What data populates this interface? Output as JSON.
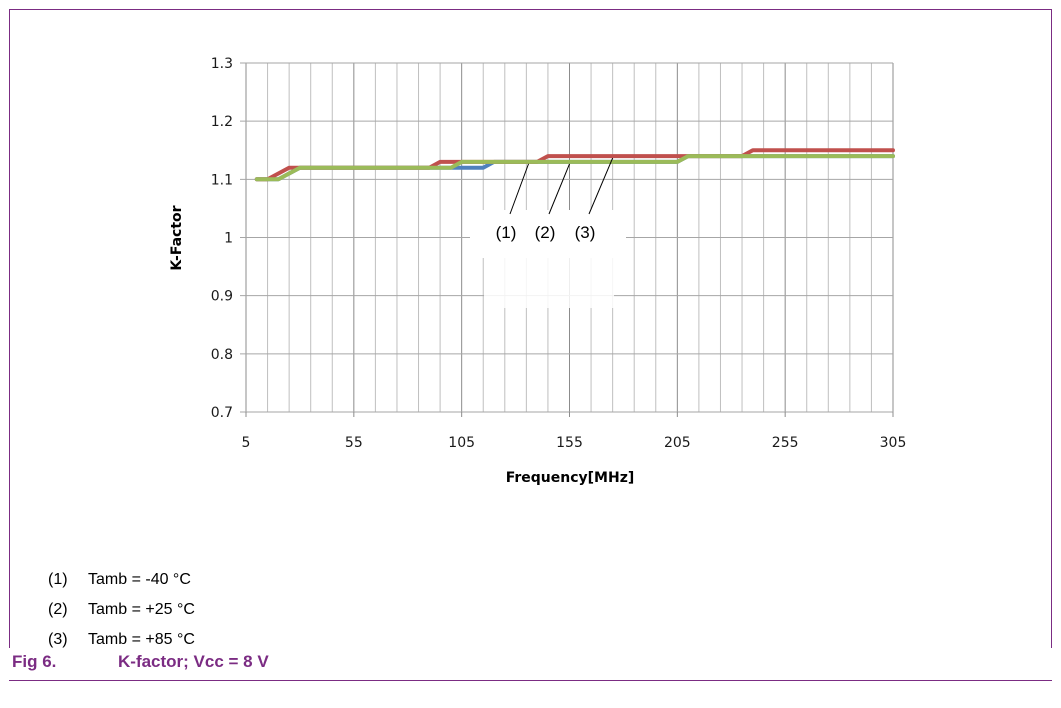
{
  "chart_data": {
    "type": "line",
    "xlabel": "Frequency[MHz]",
    "ylabel": "K-Factor",
    "xlim": [
      5,
      305
    ],
    "ylim": [
      0.7,
      1.3
    ],
    "x_ticks": [
      "5",
      "55",
      "105",
      "155",
      "205",
      "255",
      "305"
    ],
    "y_ticks": [
      "0.7",
      "0.8",
      "0.9",
      "1",
      "1.1",
      "1.2",
      "1.3"
    ],
    "grid": true,
    "x": [
      10,
      15,
      20,
      25,
      30,
      35,
      40,
      45,
      50,
      55,
      60,
      65,
      70,
      75,
      80,
      85,
      90,
      95,
      100,
      105,
      110,
      115,
      120,
      125,
      130,
      135,
      140,
      145,
      150,
      155,
      160,
      165,
      170,
      175,
      180,
      185,
      190,
      195,
      200,
      205,
      210,
      215,
      220,
      225,
      230,
      235,
      240,
      245,
      250,
      255,
      260,
      265,
      270,
      275,
      280,
      285,
      290,
      295,
      300,
      305
    ],
    "series": [
      {
        "values": [
          1.1,
          1.1,
          1.1,
          1.11,
          1.12,
          1.12,
          1.12,
          1.12,
          1.12,
          1.12,
          1.12,
          1.12,
          1.12,
          1.12,
          1.12,
          1.12,
          1.12,
          1.12,
          1.12,
          1.12,
          1.12,
          1.12,
          1.13,
          1.13,
          1.13,
          1.13,
          1.13,
          1.13,
          1.13,
          1.13,
          1.13,
          1.13,
          1.13,
          1.13,
          1.13,
          1.13,
          1.13,
          1.13,
          1.13,
          1.13,
          1.14,
          1.14,
          1.14,
          1.14,
          1.14,
          1.14,
          1.14,
          1.14,
          1.14,
          1.14,
          1.14,
          1.14,
          1.14,
          1.14,
          1.14,
          1.14,
          1.14,
          1.14,
          1.14,
          1.14
        ],
        "color": "#4f81bd"
      },
      {
        "values": [
          1.1,
          1.1,
          1.11,
          1.12,
          1.12,
          1.12,
          1.12,
          1.12,
          1.12,
          1.12,
          1.12,
          1.12,
          1.12,
          1.12,
          1.12,
          1.12,
          1.12,
          1.13,
          1.13,
          1.13,
          1.13,
          1.13,
          1.13,
          1.13,
          1.13,
          1.13,
          1.13,
          1.14,
          1.14,
          1.14,
          1.14,
          1.14,
          1.14,
          1.14,
          1.14,
          1.14,
          1.14,
          1.14,
          1.14,
          1.14,
          1.14,
          1.14,
          1.14,
          1.14,
          1.14,
          1.14,
          1.15,
          1.15,
          1.15,
          1.15,
          1.15,
          1.15,
          1.15,
          1.15,
          1.15,
          1.15,
          1.15,
          1.15,
          1.15,
          1.15
        ],
        "color": "#c0504d"
      },
      {
        "values": [
          1.1,
          1.1,
          1.1,
          1.11,
          1.12,
          1.12,
          1.12,
          1.12,
          1.12,
          1.12,
          1.12,
          1.12,
          1.12,
          1.12,
          1.12,
          1.12,
          1.12,
          1.12,
          1.12,
          1.13,
          1.13,
          1.13,
          1.13,
          1.13,
          1.13,
          1.13,
          1.13,
          1.13,
          1.13,
          1.13,
          1.13,
          1.13,
          1.13,
          1.13,
          1.13,
          1.13,
          1.13,
          1.13,
          1.13,
          1.13,
          1.14,
          1.14,
          1.14,
          1.14,
          1.14,
          1.14,
          1.14,
          1.14,
          1.14,
          1.14,
          1.14,
          1.14,
          1.14,
          1.14,
          1.14,
          1.14,
          1.14,
          1.14,
          1.14,
          1.14
        ],
        "color": "#9bbb59"
      }
    ],
    "callouts": [
      {
        "label": "(1)",
        "x": 136,
        "y": 1.13
      },
      {
        "label": "(2)",
        "x": 155,
        "y": 1.13
      },
      {
        "label": "(3)",
        "x": 175,
        "y": 1.14
      }
    ]
  },
  "notes": [
    {
      "num": "(1)",
      "text": "Tamb = -40 °C"
    },
    {
      "num": "(2)",
      "text": "Tamb = +25 °C"
    },
    {
      "num": "(3)",
      "text": "Tamb = +85 °C"
    }
  ],
  "figure": {
    "number": "Fig 6.",
    "caption": "K-factor; Vcc = 8 V"
  },
  "colors": {
    "accent": "#7b2c83",
    "grid": "#a6a6a6"
  }
}
